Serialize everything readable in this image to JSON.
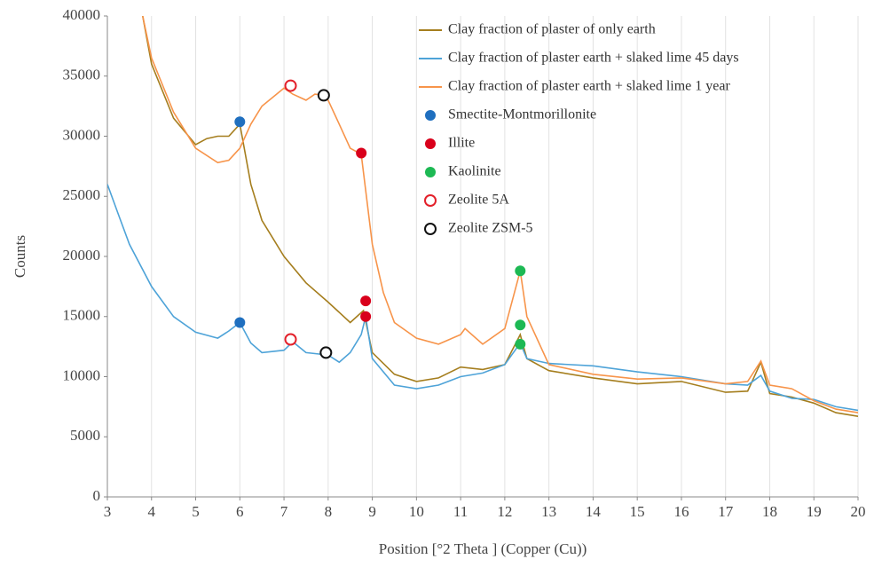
{
  "chart_data": {
    "type": "line",
    "x_label": "Position [°2 Theta ] (Copper (Cu))",
    "y_label": "Counts",
    "xlim": [
      3,
      20
    ],
    "xticks": [
      3,
      4,
      5,
      6,
      7,
      8,
      9,
      10,
      11,
      12,
      13,
      14,
      15,
      16,
      17,
      18,
      19,
      20
    ],
    "ylim": [
      0,
      40000
    ],
    "yticks": [
      0,
      5000,
      10000,
      15000,
      20000,
      25000,
      30000,
      35000,
      40000
    ],
    "grid": "x",
    "legend": "upper right",
    "series": [
      {
        "name": "Clay fraction of plaster of only earth",
        "style": "line",
        "color": "#a57e1e",
        "x": [
          3.8,
          4,
          4.5,
          5,
          5.25,
          5.5,
          5.75,
          6,
          6.25,
          6.5,
          7,
          7.5,
          8,
          8.5,
          8.8,
          9,
          9.5,
          10,
          10.5,
          11,
          11.5,
          12,
          12.35,
          12.5,
          13,
          14,
          15,
          16,
          17,
          17.5,
          17.8,
          18,
          18.5,
          19,
          19.5,
          20
        ],
        "values": [
          40000,
          36000,
          31500,
          29300,
          29800,
          30000,
          30000,
          31000,
          26000,
          23000,
          20000,
          17800,
          16200,
          14500,
          15500,
          12000,
          10200,
          9600,
          9900,
          10800,
          10600,
          11000,
          13500,
          11500,
          10500,
          9900,
          9400,
          9600,
          8700,
          8800,
          11200,
          8600,
          8300,
          7800,
          7000,
          6700
        ]
      },
      {
        "name": "Clay fraction of plaster earth + slaked lime 45 days",
        "style": "line",
        "color": "#4ea3d8",
        "x": [
          3,
          3.25,
          3.5,
          4,
          4.5,
          5,
          5.5,
          5.75,
          6,
          6.25,
          6.5,
          7,
          7.2,
          7.5,
          8,
          8.25,
          8.5,
          8.75,
          8.85,
          9,
          9.5,
          10,
          10.5,
          11,
          11.5,
          12,
          12.35,
          12.5,
          13,
          14,
          15,
          16,
          17,
          17.5,
          17.8,
          18,
          18.5,
          19,
          19.5,
          20
        ],
        "values": [
          26000,
          23500,
          21000,
          17500,
          15000,
          13700,
          13200,
          13800,
          14500,
          12800,
          12000,
          12200,
          12900,
          12000,
          11800,
          11200,
          12000,
          13500,
          15000,
          11500,
          9300,
          9000,
          9300,
          10000,
          10300,
          11000,
          12800,
          11500,
          11100,
          10900,
          10400,
          10000,
          9400,
          9300,
          10100,
          8800,
          8200,
          8100,
          7500,
          7200
        ]
      },
      {
        "name": "Clay fraction of plaster earth + slaked lime 1 year",
        "style": "line",
        "color": "#f7944a",
        "x": [
          3.8,
          4,
          4.5,
          5,
          5.5,
          5.75,
          6,
          6.25,
          6.5,
          7,
          7.2,
          7.5,
          7.7,
          7.9,
          8,
          8.25,
          8.5,
          8.75,
          9,
          9.25,
          9.5,
          10,
          10.5,
          11,
          11.1,
          11.5,
          12,
          12.35,
          12.5,
          13,
          14,
          15,
          16,
          17,
          17.5,
          17.8,
          18,
          18.5,
          19,
          19.5,
          20
        ],
        "values": [
          40000,
          36500,
          32000,
          29000,
          27800,
          28000,
          29000,
          31000,
          32500,
          34000,
          33500,
          33000,
          33500,
          33400,
          33000,
          31000,
          29000,
          28500,
          21000,
          17000,
          14500,
          13200,
          12700,
          13500,
          14000,
          12700,
          14000,
          18800,
          15000,
          11000,
          10200,
          9800,
          9900,
          9400,
          9600,
          11300,
          9300,
          9000,
          8000,
          7300,
          7000
        ]
      },
      {
        "name": "Smectite-Montmorillonite",
        "style": "filled",
        "color": "#1f6fbf",
        "x": [
          6,
          6
        ],
        "values": [
          31200,
          14500
        ]
      },
      {
        "name": "Illite",
        "style": "filled",
        "color": "#d9001b",
        "x": [
          8.75,
          8.85,
          8.85
        ],
        "values": [
          28600,
          16300,
          15000
        ]
      },
      {
        "name": "Kaolinite",
        "style": "filled",
        "color": "#1db954",
        "x": [
          12.35,
          12.35,
          12.35
        ],
        "values": [
          18800,
          14300,
          12700
        ]
      },
      {
        "name": "Zeolite 5A",
        "style": "open",
        "color": "#e3202a",
        "x": [
          7.15,
          7.15
        ],
        "values": [
          34200,
          13100
        ]
      },
      {
        "name": "Zeolite ZSM-5",
        "style": "open",
        "color": "#111111",
        "x": [
          7.9,
          7.95
        ],
        "values": [
          33400,
          12000
        ]
      }
    ]
  }
}
